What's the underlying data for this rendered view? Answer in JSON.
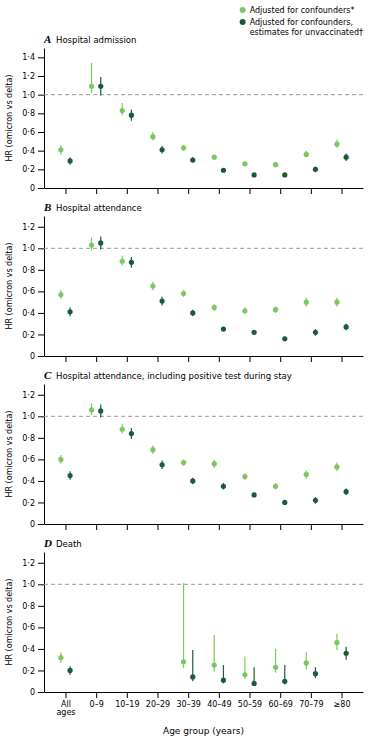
{
  "chart_data": [
    {
      "type": "scatter",
      "label": "A",
      "title": "Hospital admission",
      "ylabel": "HR (omicron vs delta)",
      "categories": [
        "All\nages",
        "0–9",
        "10–19",
        "20–29",
        "30–39",
        "40–49",
        "50–59",
        "60–69",
        "70–79",
        "≥80"
      ],
      "ylim": [
        0,
        1.5
      ],
      "yticks": [
        0,
        {
          "value": 0.2,
          "label": "0·2"
        },
        {
          "value": 0.4,
          "label": "0·4"
        },
        {
          "value": 0.6,
          "label": "0·6"
        },
        {
          "value": 0.8,
          "label": "0·8"
        },
        {
          "value": 1.0,
          "label": "1·0"
        },
        {
          "value": 1.2,
          "label": "1·2"
        },
        {
          "value": 1.4,
          "label": "1·4"
        }
      ],
      "reference_line": 1.0,
      "tick_labels": "y",
      "legend": "upper right",
      "series": [
        {
          "name": "Adjusted for confounders*",
          "color": "#7dc760",
          "values": [
            0.41,
            1.09,
            0.83,
            0.55,
            0.43,
            0.33,
            0.26,
            0.25,
            0.36,
            0.47
          ],
          "error_low": [
            0.05,
            0.07,
            0.05,
            0.04,
            0.03,
            0.02,
            0.02,
            0.02,
            0.03,
            0.04
          ],
          "error_high": [
            0.05,
            0.25,
            0.08,
            0.05,
            0.03,
            0.02,
            0.02,
            0.02,
            0.04,
            0.05
          ]
        },
        {
          "name": "Adjusted for confounders,\nestimates for unvaccinated†",
          "color": "#1a5c3a",
          "values": [
            0.29,
            1.09,
            0.78,
            0.41,
            0.3,
            0.19,
            0.14,
            0.14,
            0.2,
            0.33
          ],
          "error_low": [
            0.04,
            0.1,
            0.06,
            0.04,
            0.03,
            0.02,
            0.02,
            0.02,
            0.03,
            0.04
          ],
          "error_high": [
            0.04,
            0.1,
            0.06,
            0.04,
            0.03,
            0.02,
            0.02,
            0.02,
            0.03,
            0.04
          ]
        }
      ]
    },
    {
      "type": "scatter",
      "label": "B",
      "title": "Hospital attendance",
      "ylabel": "HR (omicron vs delta)",
      "categories": [
        "All\nages",
        "0–9",
        "10–19",
        "20–29",
        "30–39",
        "40–49",
        "50–59",
        "60–69",
        "70–79",
        "≥80"
      ],
      "ylim": [
        0,
        1.3
      ],
      "yticks": [
        0,
        {
          "value": 0.2,
          "label": "0·2"
        },
        {
          "value": 0.4,
          "label": "0·4"
        },
        {
          "value": 0.6,
          "label": "0·6"
        },
        {
          "value": 0.8,
          "label": "0·8"
        },
        {
          "value": 1.0,
          "label": "1·0"
        },
        {
          "value": 1.2,
          "label": "1·2"
        }
      ],
      "reference_line": 1.0,
      "tick_labels": "y",
      "series": [
        {
          "color": "#7dc760",
          "values": [
            0.57,
            1.03,
            0.88,
            0.65,
            0.58,
            0.45,
            0.42,
            0.43,
            0.5,
            0.5
          ],
          "error_low": [
            0.04,
            0.05,
            0.04,
            0.04,
            0.03,
            0.03,
            0.03,
            0.03,
            0.04,
            0.04
          ],
          "error_high": [
            0.04,
            0.07,
            0.05,
            0.04,
            0.03,
            0.03,
            0.03,
            0.03,
            0.04,
            0.04
          ]
        },
        {
          "color": "#1a5c3a",
          "values": [
            0.41,
            1.05,
            0.87,
            0.51,
            0.4,
            0.25,
            0.22,
            0.16,
            0.22,
            0.27
          ],
          "error_low": [
            0.04,
            0.06,
            0.05,
            0.04,
            0.03,
            0.02,
            0.02,
            0.02,
            0.03,
            0.03
          ],
          "error_high": [
            0.04,
            0.06,
            0.05,
            0.04,
            0.03,
            0.02,
            0.02,
            0.02,
            0.03,
            0.03
          ]
        }
      ]
    },
    {
      "type": "scatter",
      "label": "C",
      "title": "Hospital attendance, including positive test during stay",
      "ylabel": "HR (omicron vs delta)",
      "categories": [
        "All\nages",
        "0–9",
        "10–19",
        "20–29",
        "30–39",
        "40–49",
        "50–59",
        "60–69",
        "70–79",
        "≥80"
      ],
      "ylim": [
        0,
        1.3
      ],
      "yticks": [
        0,
        {
          "value": 0.2,
          "label": "0·2"
        },
        {
          "value": 0.4,
          "label": "0·4"
        },
        {
          "value": 0.6,
          "label": "0·6"
        },
        {
          "value": 0.8,
          "label": "0·8"
        },
        {
          "value": 1.0,
          "label": "1·0"
        },
        {
          "value": 1.2,
          "label": "1·2"
        }
      ],
      "reference_line": 1.0,
      "tick_labels": "y",
      "series": [
        {
          "color": "#7dc760",
          "values": [
            0.6,
            1.06,
            0.88,
            0.69,
            0.57,
            0.56,
            0.44,
            0.35,
            0.46,
            0.53
          ],
          "error_low": [
            0.04,
            0.05,
            0.04,
            0.04,
            0.03,
            0.04,
            0.03,
            0.03,
            0.04,
            0.04
          ],
          "error_high": [
            0.04,
            0.06,
            0.05,
            0.04,
            0.03,
            0.04,
            0.03,
            0.03,
            0.04,
            0.04
          ]
        },
        {
          "color": "#1a5c3a",
          "values": [
            0.45,
            1.05,
            0.84,
            0.55,
            0.4,
            0.35,
            0.27,
            0.2,
            0.22,
            0.3
          ],
          "error_low": [
            0.04,
            0.06,
            0.05,
            0.04,
            0.03,
            0.03,
            0.02,
            0.02,
            0.03,
            0.03
          ],
          "error_high": [
            0.04,
            0.06,
            0.05,
            0.04,
            0.03,
            0.03,
            0.02,
            0.02,
            0.03,
            0.03
          ]
        }
      ]
    },
    {
      "type": "scatter",
      "label": "D",
      "title": "Death",
      "ylabel": "HR (omicron vs delta)",
      "xlabel": "Age group (years)",
      "categories": [
        "All\nages",
        "0–9",
        "10–19",
        "20–29",
        "30–39",
        "40–49",
        "50–59",
        "60–69",
        "70–79",
        "≥80"
      ],
      "ylim": [
        0,
        1.3
      ],
      "yticks": [
        0,
        {
          "value": 0.2,
          "label": "0·2"
        },
        {
          "value": 0.4,
          "label": "0·4"
        },
        {
          "value": 0.6,
          "label": "0·6"
        },
        {
          "value": 0.8,
          "label": "0·8"
        },
        {
          "value": 1.0,
          "label": "1·0"
        },
        {
          "value": 1.2,
          "label": "1·2"
        }
      ],
      "reference_line": 1.0,
      "series": [
        {
          "color": "#7dc760",
          "values": [
            0.32,
            null,
            null,
            null,
            0.28,
            0.25,
            0.16,
            0.23,
            0.27,
            0.46
          ],
          "error_low": [
            0.05,
            null,
            null,
            null,
            0.06,
            0.06,
            0.04,
            0.05,
            0.06,
            0.07
          ],
          "error_high": [
            0.05,
            null,
            null,
            null,
            0.73,
            0.28,
            0.17,
            0.17,
            0.1,
            0.08
          ]
        },
        {
          "color": "#1a5c3a",
          "values": [
            0.2,
            null,
            null,
            null,
            0.14,
            0.11,
            0.08,
            0.1,
            0.17,
            0.36
          ],
          "error_low": [
            0.04,
            null,
            null,
            null,
            0.04,
            0.03,
            0.02,
            0.03,
            0.04,
            0.06
          ],
          "error_high": [
            0.04,
            null,
            null,
            null,
            0.25,
            0.14,
            0.15,
            0.15,
            0.06,
            0.06
          ]
        }
      ]
    }
  ]
}
